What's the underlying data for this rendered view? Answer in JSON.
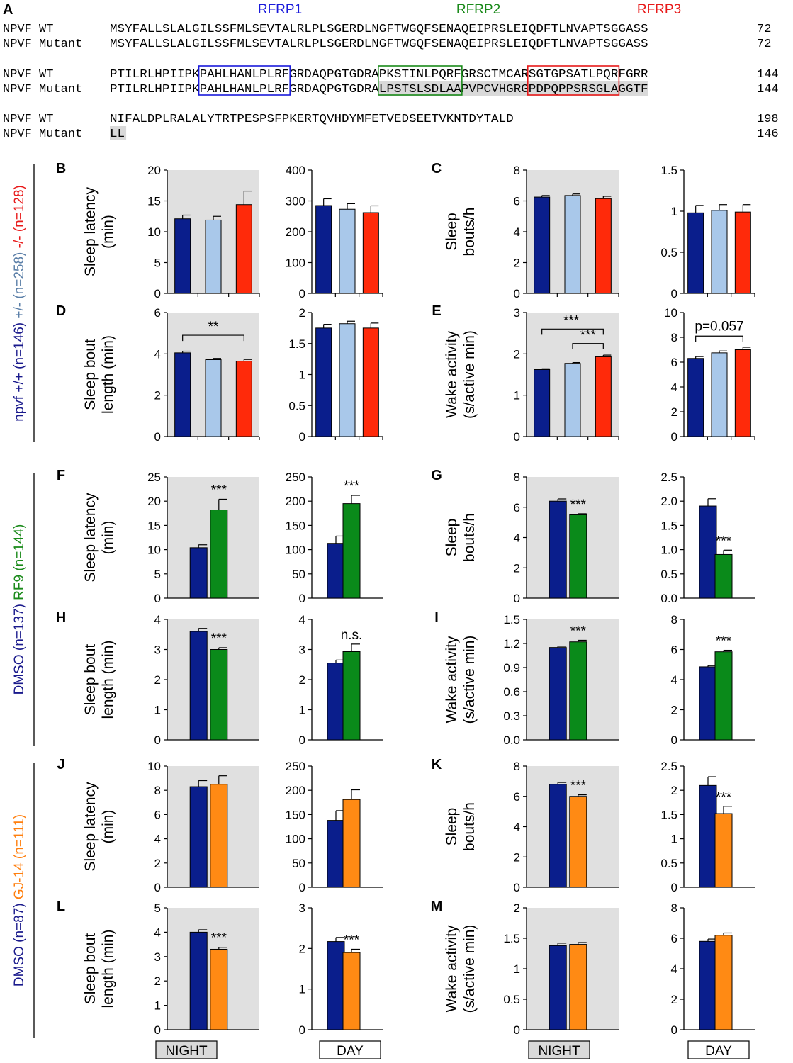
{
  "sequence": {
    "panel_letter": "A",
    "peptides": [
      {
        "name": "RFRP1",
        "color": "#1a1adb"
      },
      {
        "name": "RFRP2",
        "color": "#1a8a1a"
      },
      {
        "name": "RFRP3",
        "color": "#e81a1a"
      }
    ],
    "rows": [
      {
        "label": "NPVF WT",
        "seq": "MSYFALLSLALGILSSFMLSEVTALRLPLSGERDLNGFTWGQFSENAQEIPRSLEIQDFTLNVAPTSGGASS",
        "num": "72"
      },
      {
        "label": "NPVF Mutant",
        "seq": "MSYFALLSLALGILSSFMLSEVTALRLPLSGERDLNGFTWGQFSENAQEIPRSLEIQDFTLNVAPTSGGASS",
        "num": "72"
      },
      {
        "label": "NPVF WT",
        "seq": "PTILRLHPIIPKPAHLHANLPLRFGRDAQPGTGDRAPKSTINLPQRFGRSCTMCARSGTGPSATLPQRFGRR",
        "num": "144"
      },
      {
        "label": "NPVF Mutant",
        "seq": "PTILRLHPIIPKPAHLHANLPLRFGRDAQPGTGDRALPSTSLSDLAAPVPCVHGRGPDPQPPSRSGLAGGTF",
        "num": "144"
      },
      {
        "label": "NPVF WT",
        "seq": "NIFALDPLRALALYTRTPESPSFPKERTQVHDYMFETVEDSEETVKNTDYTALD",
        "num": "198"
      },
      {
        "label": "NPVF Mutant",
        "seq": "LL",
        "num": "146"
      }
    ]
  },
  "groups": [
    {
      "labels": [
        {
          "text": "npvf +/+ (n=146)",
          "color": "#1a1a8c"
        },
        {
          "text": "+/- (n=258)",
          "color": "#5b7fa8"
        },
        {
          "text": "-/- (n=128)",
          "color": "#e81a1a"
        }
      ]
    },
    {
      "labels": [
        {
          "text": "DMSO (n=137)",
          "color": "#1a1a8c"
        },
        {
          "text": "RF9 (n=144)",
          "color": "#1a8a1a"
        }
      ]
    },
    {
      "labels": [
        {
          "text": "DMSO (n=87)",
          "color": "#1a1a8c"
        },
        {
          "text": "GJ-14 (n=111)",
          "color": "#ff7f0e"
        }
      ]
    }
  ],
  "bar_colors": {
    "wt": "#0a1e8c",
    "het": "#a9c8ea",
    "mut": "#ff2a0a",
    "rf9": "#0a8a1a",
    "gj14": "#ff8a14"
  },
  "bottom_labels": [
    "NIGHT",
    "DAY",
    "NIGHT",
    "DAY"
  ],
  "chart_data": [
    {
      "panel": "B",
      "type": "bar",
      "ylabel": [
        "Sleep latency",
        "(min)"
      ],
      "night": {
        "ylim": [
          0,
          20
        ],
        "ticks": [
          "0",
          "5",
          "10",
          "15",
          "20"
        ],
        "values": [
          12.1,
          11.9,
          14.4
        ],
        "errors": [
          0.6,
          0.6,
          2.2
        ],
        "annotation": null
      },
      "day": {
        "ylim": [
          0,
          400
        ],
        "ticks": [
          "0",
          "100",
          "200",
          "300",
          "400"
        ],
        "values": [
          285,
          273,
          262
        ],
        "errors": [
          22,
          18,
          22
        ],
        "annotation": null
      }
    },
    {
      "panel": "C",
      "type": "bar",
      "ylabel": [
        "Sleep",
        "bouts/h"
      ],
      "night": {
        "ylim": [
          0,
          8
        ],
        "ticks": [
          "0",
          "2",
          "4",
          "6",
          "8"
        ],
        "values": [
          6.25,
          6.35,
          6.15
        ],
        "errors": [
          0.1,
          0.1,
          0.15
        ],
        "annotation": null
      },
      "day": {
        "ylim": [
          0,
          1.5
        ],
        "ticks": [
          "0",
          "0.5",
          "1",
          "1.5"
        ],
        "values": [
          0.98,
          1.01,
          0.99
        ],
        "errors": [
          0.09,
          0.07,
          0.09
        ],
        "annotation": null
      }
    },
    {
      "panel": "D",
      "type": "bar",
      "ylabel": [
        "Sleep bout",
        "length (min)"
      ],
      "night": {
        "ylim": [
          0,
          6
        ],
        "ticks": [
          "0",
          "2",
          "4",
          "6"
        ],
        "values": [
          4.05,
          3.72,
          3.65
        ],
        "errors": [
          0.08,
          0.06,
          0.08
        ],
        "annotation": "**"
      },
      "day": {
        "ylim": [
          0,
          2
        ],
        "ticks": [
          "0",
          "0.5",
          "1",
          "1.5",
          "2"
        ],
        "values": [
          1.75,
          1.82,
          1.75
        ],
        "errors": [
          0.06,
          0.04,
          0.08
        ],
        "annotation": null
      }
    },
    {
      "panel": "E",
      "type": "bar",
      "ylabel": [
        "Wake activity",
        "(s/active min)"
      ],
      "night": {
        "ylim": [
          0,
          3
        ],
        "ticks": [
          "0",
          "1",
          "2",
          "3"
        ],
        "values": [
          1.62,
          1.77,
          1.93
        ],
        "errors": [
          0.02,
          0.02,
          0.04
        ],
        "annotation": "***"
      },
      "day": {
        "ylim": [
          0,
          10
        ],
        "ticks": [
          "0",
          "2",
          "4",
          "6",
          "8",
          "10"
        ],
        "values": [
          6.3,
          6.75,
          7.0
        ],
        "errors": [
          0.15,
          0.15,
          0.2
        ],
        "annotation": "p=0.057"
      }
    },
    {
      "panel": "F",
      "type": "bar",
      "ylabel": [
        "Sleep latency",
        "(min)"
      ],
      "night": {
        "ylim": [
          0,
          25
        ],
        "ticks": [
          "0",
          "5",
          "10",
          "15",
          "20",
          "25"
        ],
        "values": [
          10.4,
          18.2
        ],
        "errors": [
          0.6,
          2.2
        ],
        "annotation": "***"
      },
      "day": {
        "ylim": [
          0,
          250
        ],
        "ticks": [
          "0",
          "50",
          "100",
          "150",
          "200",
          "250"
        ],
        "values": [
          113,
          195
        ],
        "errors": [
          15,
          17
        ],
        "annotation": "***"
      }
    },
    {
      "panel": "G",
      "type": "bar",
      "ylabel": [
        "Sleep",
        "bouts/h"
      ],
      "night": {
        "ylim": [
          0,
          8
        ],
        "ticks": [
          "0",
          "2",
          "4",
          "6",
          "8"
        ],
        "values": [
          6.4,
          5.5
        ],
        "errors": [
          0.15,
          0.07
        ],
        "annotation": "***"
      },
      "day": {
        "ylim": [
          0,
          2.5
        ],
        "ticks": [
          "0.0",
          "0.5",
          "1.0",
          "1.5",
          "2.0",
          "2.5"
        ],
        "values": [
          1.9,
          0.9
        ],
        "errors": [
          0.15,
          0.09
        ],
        "annotation": "***"
      }
    },
    {
      "panel": "H",
      "type": "bar",
      "ylabel": [
        "Sleep bout",
        "length (min)"
      ],
      "night": {
        "ylim": [
          0,
          4
        ],
        "ticks": [
          "0",
          "1",
          "2",
          "3",
          "4"
        ],
        "values": [
          3.6,
          3.0
        ],
        "errors": [
          0.1,
          0.06
        ],
        "annotation": "***"
      },
      "day": {
        "ylim": [
          0,
          4
        ],
        "ticks": [
          "0",
          "1",
          "2",
          "3",
          "4"
        ],
        "values": [
          2.55,
          2.93
        ],
        "errors": [
          0.1,
          0.25
        ],
        "annotation": "n.s."
      }
    },
    {
      "panel": "I",
      "type": "bar",
      "ylabel": [
        "Wake activity",
        "(s/active min)"
      ],
      "night": {
        "ylim": [
          0,
          1.5
        ],
        "ticks": [
          "0.0",
          "0.3",
          "0.6",
          "0.9",
          "1.2",
          "1.5"
        ],
        "values": [
          1.15,
          1.22
        ],
        "errors": [
          0.015,
          0.02
        ],
        "annotation": "***"
      },
      "day": {
        "ylim": [
          0,
          8
        ],
        "ticks": [
          "0",
          "2",
          "4",
          "6",
          "8"
        ],
        "values": [
          4.85,
          5.85
        ],
        "errors": [
          0.08,
          0.1
        ],
        "annotation": "***"
      }
    },
    {
      "panel": "J",
      "type": "bar",
      "ylabel": [
        "Sleep latency",
        "(min)"
      ],
      "night": {
        "ylim": [
          0,
          10
        ],
        "ticks": [
          "0",
          "2",
          "4",
          "6",
          "8",
          "10"
        ],
        "values": [
          8.3,
          8.5
        ],
        "errors": [
          0.5,
          0.7
        ],
        "annotation": null
      },
      "day": {
        "ylim": [
          0,
          250
        ],
        "ticks": [
          "0",
          "50",
          "100",
          "150",
          "200",
          "250"
        ],
        "values": [
          138,
          181
        ],
        "errors": [
          20,
          20
        ],
        "annotation": null
      }
    },
    {
      "panel": "K",
      "type": "bar",
      "ylabel": [
        "Sleep",
        "bouts/h"
      ],
      "night": {
        "ylim": [
          0,
          8
        ],
        "ticks": [
          "0",
          "2",
          "4",
          "6",
          "8"
        ],
        "values": [
          6.8,
          6.0
        ],
        "errors": [
          0.12,
          0.1
        ],
        "annotation": "***"
      },
      "day": {
        "ylim": [
          0,
          2.5
        ],
        "ticks": [
          "0",
          "0.5",
          "1",
          "1.5",
          "2",
          "2.5"
        ],
        "values": [
          2.1,
          1.52
        ],
        "errors": [
          0.18,
          0.15
        ],
        "annotation": "***"
      }
    },
    {
      "panel": "L",
      "type": "bar",
      "ylabel": [
        "Sleep bout",
        "length (min)"
      ],
      "night": {
        "ylim": [
          0,
          5
        ],
        "ticks": [
          "0",
          "1",
          "2",
          "3",
          "4",
          "5"
        ],
        "values": [
          4.0,
          3.3
        ],
        "errors": [
          0.1,
          0.08
        ],
        "annotation": "***"
      },
      "day": {
        "ylim": [
          0,
          3
        ],
        "ticks": [
          "0",
          "1",
          "2",
          "3"
        ],
        "values": [
          2.17,
          1.9
        ],
        "errors": [
          0.1,
          0.08
        ],
        "annotation": "***"
      }
    },
    {
      "panel": "M",
      "type": "bar",
      "ylabel": [
        "Wake activity",
        "(s/active min)"
      ],
      "night": {
        "ylim": [
          0,
          2
        ],
        "ticks": [
          "0",
          "0.5",
          "1",
          "1.5",
          "2"
        ],
        "values": [
          1.38,
          1.4
        ],
        "errors": [
          0.04,
          0.03
        ],
        "annotation": null
      },
      "day": {
        "ylim": [
          0,
          8
        ],
        "ticks": [
          "0",
          "2",
          "4",
          "6",
          "8"
        ],
        "values": [
          5.8,
          6.2
        ],
        "errors": [
          0.15,
          0.15
        ],
        "annotation": null
      }
    }
  ]
}
